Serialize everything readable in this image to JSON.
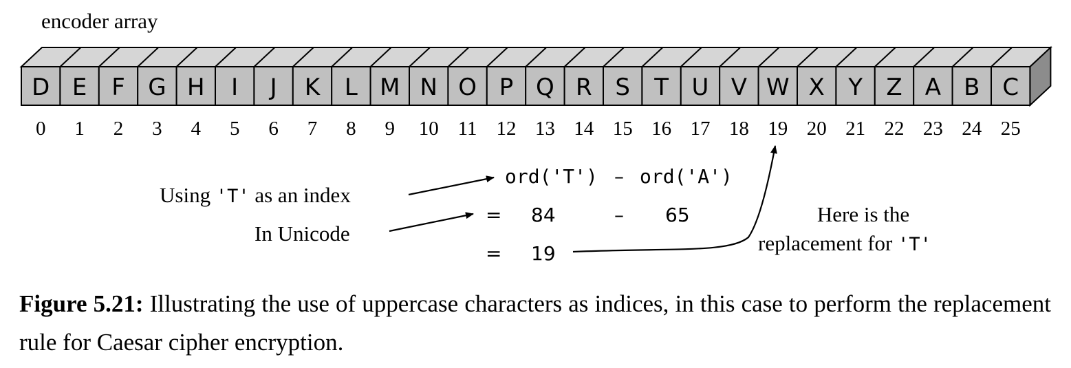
{
  "array_label": "encoder array",
  "cells": [
    "D",
    "E",
    "F",
    "G",
    "H",
    "I",
    "J",
    "K",
    "L",
    "M",
    "N",
    "O",
    "P",
    "Q",
    "R",
    "S",
    "T",
    "U",
    "V",
    "W",
    "X",
    "Y",
    "Z",
    "A",
    "B",
    "C"
  ],
  "indices": [
    "0",
    "1",
    "2",
    "3",
    "4",
    "5",
    "6",
    "7",
    "8",
    "9",
    "10",
    "11",
    "12",
    "13",
    "14",
    "15",
    "16",
    "17",
    "18",
    "19",
    "20",
    "21",
    "22",
    "23",
    "24",
    "25"
  ],
  "annotations": {
    "index_prefix": "Using ",
    "index_code": "'T'",
    "index_suffix": " as an index",
    "unicode": "In Unicode",
    "replacement_line1": "Here is the",
    "replacement_prefix": "replacement for ",
    "replacement_code": "'T'"
  },
  "equation": {
    "left": "ord('T')",
    "minus": "–",
    "right": "ord('A')",
    "eq": "=",
    "val_t": "84",
    "val_a": "65",
    "result": "19"
  },
  "caption": {
    "label": "Figure 5.21:",
    "text": " Illustrating the use of uppercase characters as indices, in this case to perform the replacement rule for Caesar cipher encryption."
  },
  "colors": {
    "cell_fill": "#c0c0c0",
    "top_fill": "#d6d6d6",
    "side_fill": "#8c8c8c",
    "stroke": "#000000"
  }
}
